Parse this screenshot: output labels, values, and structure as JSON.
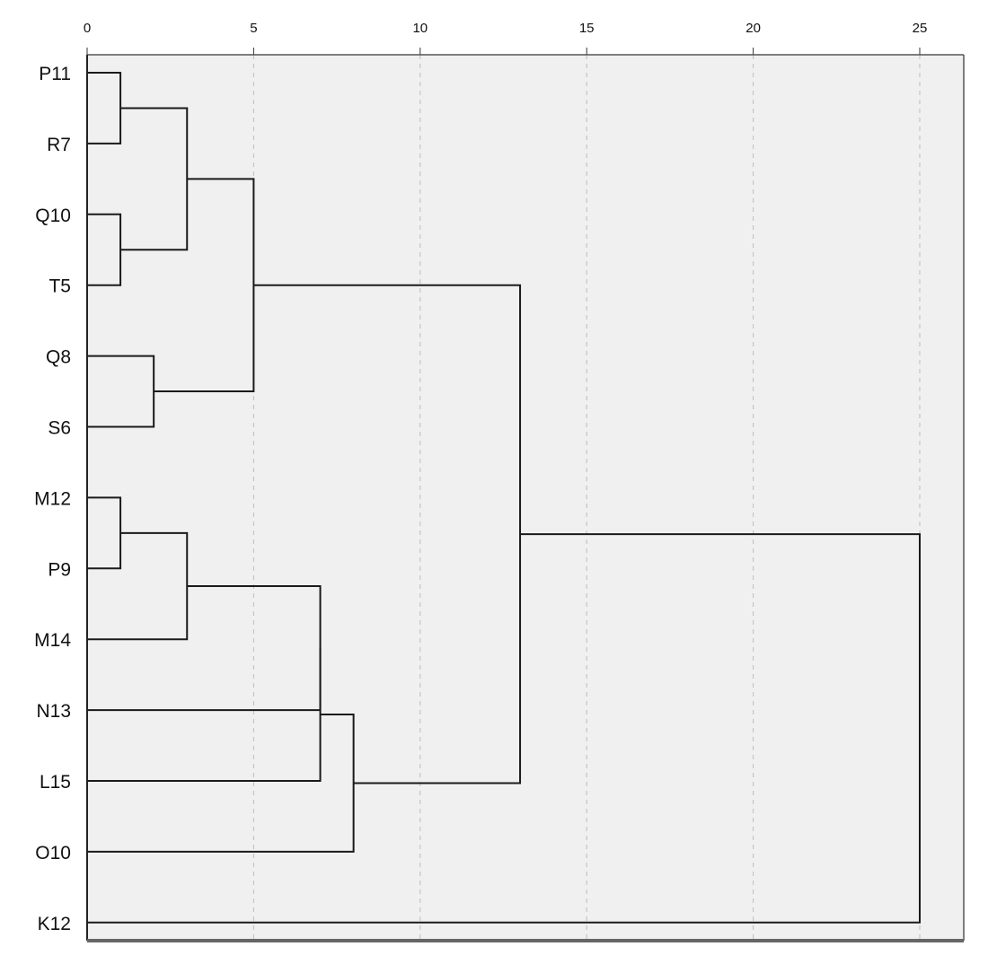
{
  "chart_data": {
    "type": "dendrogram",
    "title": "",
    "xlabel": "",
    "ylabel": "",
    "orientation": "horizontal",
    "xlim": [
      0,
      25
    ],
    "x_ticks": [
      0,
      5,
      10,
      15,
      20,
      25
    ],
    "grid": "vertical dashed",
    "legend": "none",
    "colors": {
      "background": "#f0f0f0",
      "line": "#1a1a1a",
      "grid": "#bdbdbd"
    },
    "leaves": [
      "P11",
      "R7",
      "Q10",
      "T5",
      "Q8",
      "S6",
      "M12",
      "P9",
      "M14",
      "N13",
      "L15",
      "O10",
      "K12"
    ],
    "merges": [
      {
        "id": "c1",
        "left": "P11",
        "right": "R7",
        "height": 1
      },
      {
        "id": "c2",
        "left": "Q10",
        "right": "T5",
        "height": 1
      },
      {
        "id": "c3",
        "left": "M12",
        "right": "P9",
        "height": 1
      },
      {
        "id": "c4",
        "left": "Q8",
        "right": "S6",
        "height": 2
      },
      {
        "id": "c5",
        "left": "c1",
        "right": "c2",
        "height": 3
      },
      {
        "id": "c6",
        "left": "c3",
        "right": "M14",
        "height": 3
      },
      {
        "id": "c7",
        "left": "c5",
        "right": "c4",
        "height": 5
      },
      {
        "id": "c8",
        "left": "c6",
        "right": "N13",
        "height": 7
      },
      {
        "id": "c9",
        "left": "c8",
        "right": "L15",
        "height": 7
      },
      {
        "id": "c10",
        "left": "c9",
        "right": "O10",
        "height": 8
      },
      {
        "id": "c11",
        "left": "c7",
        "right": "c10",
        "height": 13
      },
      {
        "id": "c12",
        "left": "c11",
        "right": "K12",
        "height": 25
      }
    ]
  }
}
